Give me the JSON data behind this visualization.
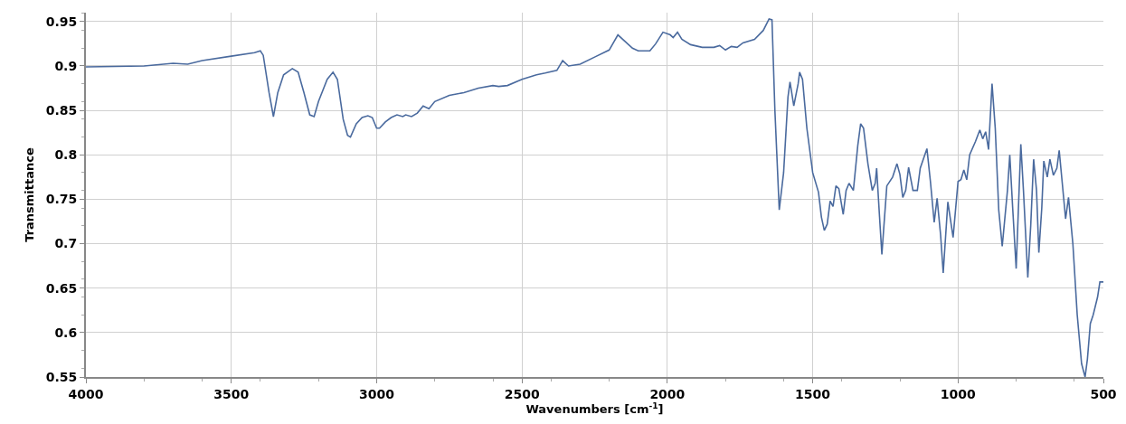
{
  "chart_data": {
    "type": "line",
    "xlabel": "Wavenumbers [cm$^{-1}$]",
    "ylabel": "Transmittance",
    "xlim": [
      4000,
      500
    ],
    "xticks": [
      4000,
      3500,
      3000,
      2500,
      2000,
      1500,
      1000,
      500
    ],
    "ylim": [
      0.55,
      0.96
    ],
    "yticks": [
      0.55,
      0.6,
      0.65,
      0.7,
      0.75,
      0.8,
      0.85,
      0.9,
      0.95
    ],
    "grid": true,
    "line_style": "solid",
    "x": [
      4000,
      3800,
      3700,
      3650,
      3600,
      3500,
      3420,
      3400,
      3390,
      3370,
      3355,
      3340,
      3320,
      3290,
      3270,
      3250,
      3230,
      3215,
      3200,
      3170,
      3150,
      3135,
      3115,
      3100,
      3090,
      3070,
      3050,
      3030,
      3015,
      3000,
      2990,
      2970,
      2950,
      2930,
      2910,
      2900,
      2880,
      2860,
      2840,
      2820,
      2800,
      2750,
      2700,
      2650,
      2600,
      2580,
      2550,
      2500,
      2450,
      2420,
      2380,
      2360,
      2340,
      2300,
      2250,
      2200,
      2170,
      2120,
      2100,
      2060,
      2040,
      2015,
      1990,
      1980,
      1965,
      1950,
      1920,
      1880,
      1840,
      1820,
      1800,
      1780,
      1760,
      1740,
      1700,
      1670,
      1650,
      1640,
      1630,
      1615,
      1600,
      1585,
      1578,
      1565,
      1550,
      1545,
      1535,
      1520,
      1500,
      1480,
      1470,
      1460,
      1450,
      1440,
      1430,
      1420,
      1410,
      1395,
      1385,
      1375,
      1360,
      1345,
      1335,
      1325,
      1310,
      1295,
      1285,
      1280,
      1270,
      1262,
      1255,
      1245,
      1225,
      1210,
      1200,
      1190,
      1180,
      1170,
      1155,
      1140,
      1130,
      1107,
      1095,
      1082,
      1072,
      1060,
      1051,
      1035,
      1017,
      1000,
      990,
      980,
      970,
      960,
      940,
      925,
      915,
      905,
      895,
      883,
      872,
      860,
      848,
      830,
      822,
      812,
      800,
      790,
      784,
      775,
      760,
      750,
      740,
      730,
      722,
      712,
      705,
      693,
      684,
      672,
      660,
      652,
      642,
      630,
      620,
      605,
      590,
      575,
      563,
      555,
      545,
      535,
      520,
      512,
      500
    ],
    "series": [
      {
        "color": "#4a6a9e",
        "values": [
          0.899,
          0.9,
          0.903,
          0.902,
          0.906,
          0.911,
          0.915,
          0.917,
          0.912,
          0.87,
          0.843,
          0.87,
          0.89,
          0.897,
          0.893,
          0.87,
          0.845,
          0.843,
          0.86,
          0.885,
          0.893,
          0.885,
          0.84,
          0.822,
          0.82,
          0.835,
          0.842,
          0.844,
          0.842,
          0.83,
          0.83,
          0.837,
          0.842,
          0.845,
          0.843,
          0.845,
          0.843,
          0.847,
          0.855,
          0.852,
          0.86,
          0.867,
          0.87,
          0.875,
          0.878,
          0.877,
          0.878,
          0.885,
          0.89,
          0.892,
          0.895,
          0.906,
          0.9,
          0.902,
          0.91,
          0.918,
          0.935,
          0.92,
          0.917,
          0.917,
          0.925,
          0.938,
          0.935,
          0.932,
          0.938,
          0.93,
          0.924,
          0.921,
          0.921,
          0.923,
          0.918,
          0.922,
          0.921,
          0.926,
          0.93,
          0.94,
          0.953,
          0.952,
          0.85,
          0.738,
          0.78,
          0.865,
          0.882,
          0.855,
          0.88,
          0.893,
          0.885,
          0.83,
          0.78,
          0.758,
          0.73,
          0.715,
          0.722,
          0.748,
          0.742,
          0.765,
          0.762,
          0.733,
          0.76,
          0.768,
          0.76,
          0.81,
          0.835,
          0.83,
          0.79,
          0.76,
          0.768,
          0.785,
          0.73,
          0.688,
          0.72,
          0.765,
          0.775,
          0.79,
          0.778,
          0.752,
          0.76,
          0.786,
          0.76,
          0.76,
          0.785,
          0.807,
          0.77,
          0.724,
          0.751,
          0.71,
          0.667,
          0.747,
          0.707,
          0.77,
          0.772,
          0.783,
          0.772,
          0.8,
          0.815,
          0.828,
          0.818,
          0.826,
          0.806,
          0.88,
          0.83,
          0.738,
          0.697,
          0.76,
          0.8,
          0.74,
          0.672,
          0.76,
          0.812,
          0.76,
          0.662,
          0.72,
          0.795,
          0.76,
          0.69,
          0.74,
          0.793,
          0.775,
          0.795,
          0.777,
          0.785,
          0.805,
          0.77,
          0.728,
          0.752,
          0.7,
          0.62,
          0.565,
          0.55,
          0.57,
          0.61,
          0.62,
          0.64,
          0.657,
          0.657
        ]
      }
    ]
  }
}
